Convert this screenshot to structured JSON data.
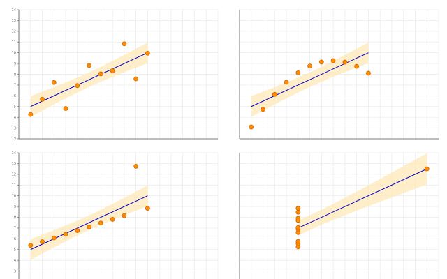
{
  "chart_data": [
    {
      "type": "scatter",
      "title": "",
      "xlabel": "",
      "ylabel": "",
      "x": [
        4,
        5,
        6,
        7,
        8,
        9,
        10,
        11,
        12,
        13,
        14
      ],
      "y": [
        4.26,
        5.68,
        7.24,
        4.82,
        6.95,
        8.81,
        8.04,
        8.33,
        10.84,
        7.58,
        9.96
      ],
      "xlim": [
        3,
        20
      ],
      "ylim": [
        2,
        14
      ],
      "yticks": [
        "2",
        "3",
        "4",
        "5",
        "6",
        "7",
        "8",
        "9",
        "10",
        "11",
        "12",
        "13",
        "14"
      ],
      "fit": {
        "slope": 0.5,
        "intercept": 3.0
      },
      "grid": true
    },
    {
      "type": "scatter",
      "title": "",
      "xlabel": "",
      "ylabel": "",
      "x": [
        4,
        5,
        6,
        7,
        8,
        9,
        10,
        11,
        12,
        13,
        14
      ],
      "y": [
        3.1,
        4.74,
        6.13,
        7.26,
        8.14,
        8.77,
        9.14,
        9.26,
        9.13,
        8.74,
        8.1
      ],
      "xlim": [
        3,
        20
      ],
      "ylim": [
        2,
        14
      ],
      "yticks": [],
      "fit": {
        "slope": 0.5,
        "intercept": 3.0
      },
      "grid": true
    },
    {
      "type": "scatter",
      "title": "",
      "xlabel": "",
      "ylabel": "",
      "x": [
        4,
        5,
        6,
        7,
        8,
        9,
        10,
        11,
        12,
        13,
        14
      ],
      "y": [
        5.39,
        5.73,
        6.08,
        6.42,
        6.77,
        7.11,
        7.46,
        7.81,
        8.15,
        12.74,
        8.84
      ],
      "xlim": [
        3,
        20
      ],
      "ylim": [
        2,
        14
      ],
      "yticks": [
        "2",
        "3",
        "4",
        "5",
        "6",
        "7",
        "8",
        "9",
        "10",
        "11",
        "12",
        "13",
        "14"
      ],
      "fit": {
        "slope": 0.5,
        "intercept": 3.0
      },
      "grid": true
    },
    {
      "type": "scatter",
      "title": "",
      "xlabel": "",
      "ylabel": "",
      "x": [
        8,
        8,
        8,
        8,
        8,
        8,
        8,
        8,
        8,
        8,
        19
      ],
      "y": [
        5.25,
        5.56,
        5.76,
        6.58,
        6.89,
        7.04,
        7.71,
        7.91,
        8.47,
        8.84,
        12.5
      ],
      "xlim": [
        3,
        20
      ],
      "ylim": [
        2,
        14
      ],
      "yticks": [],
      "fit": {
        "slope": 0.5,
        "intercept": 3.0
      },
      "grid": true
    }
  ],
  "colors": {
    "point_fill": "#ff8c00",
    "point_stroke": "#d06a00",
    "fit_line": "#0000cc",
    "confidence_band": "#fde8b8",
    "grid": "#eaeaea",
    "axis": "#555555"
  }
}
